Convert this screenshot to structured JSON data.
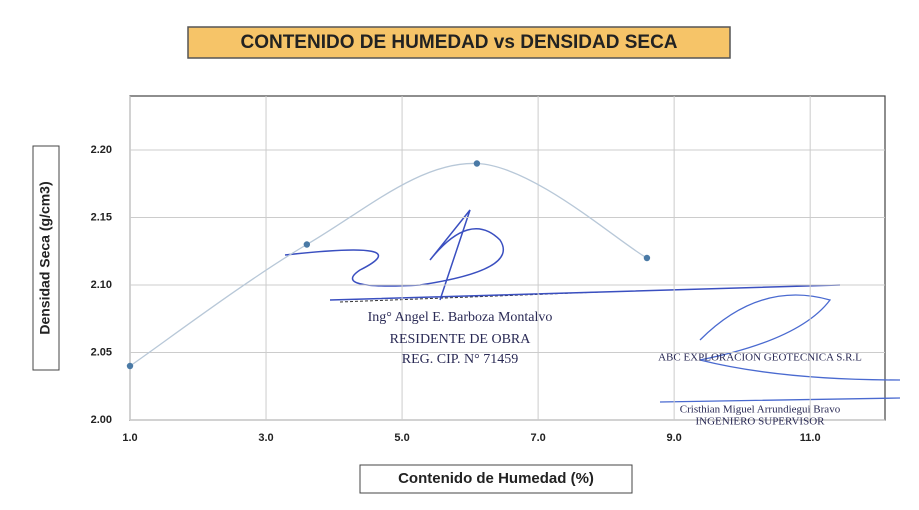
{
  "chart_data": {
    "type": "scatter",
    "title": "CONTENIDO DE HUMEDAD vs DENSIDAD SECA",
    "x_label": "Contenido de Humedad (%)",
    "y_label": "Densidad Seca (g/cm3)",
    "x": [
      1.0,
      3.6,
      6.1,
      8.6
    ],
    "values": [
      2.04,
      2.13,
      2.19,
      2.12
    ],
    "color": "#4a7aa6",
    "line_color": "#b8c8d8",
    "xlim": [
      1.0,
      12.1
    ],
    "ylim": [
      2.0,
      2.24
    ],
    "xticks": [
      {
        "value": 1,
        "label": "1.0"
      },
      {
        "value": 3,
        "label": "3.0"
      },
      {
        "value": 5,
        "label": "5.0"
      },
      {
        "value": 7,
        "label": "7.0"
      },
      {
        "value": 9,
        "label": "9.0"
      },
      {
        "value": 11,
        "label": "11.0"
      }
    ],
    "yticks": [
      {
        "value": 2,
        "label": "2.00"
      },
      {
        "value": 2.05,
        "label": "2.05"
      },
      {
        "value": 2.1,
        "label": "2.10"
      },
      {
        "value": 2.15,
        "label": "2.15"
      },
      {
        "value": 2.2,
        "label": "2.20"
      }
    ],
    "grid": true,
    "annotations": [
      "Ing° Angel E. Barboza Montalvo",
      "RESIDENTE DE OBRA",
      "REG. CIP. N° 71459",
      "ABC EXPLORACION GEOTECNICA S.R.L",
      "Cristhian Miguel Arrundiegui Bravo",
      "INGENIERO SUPERVISOR"
    ]
  }
}
